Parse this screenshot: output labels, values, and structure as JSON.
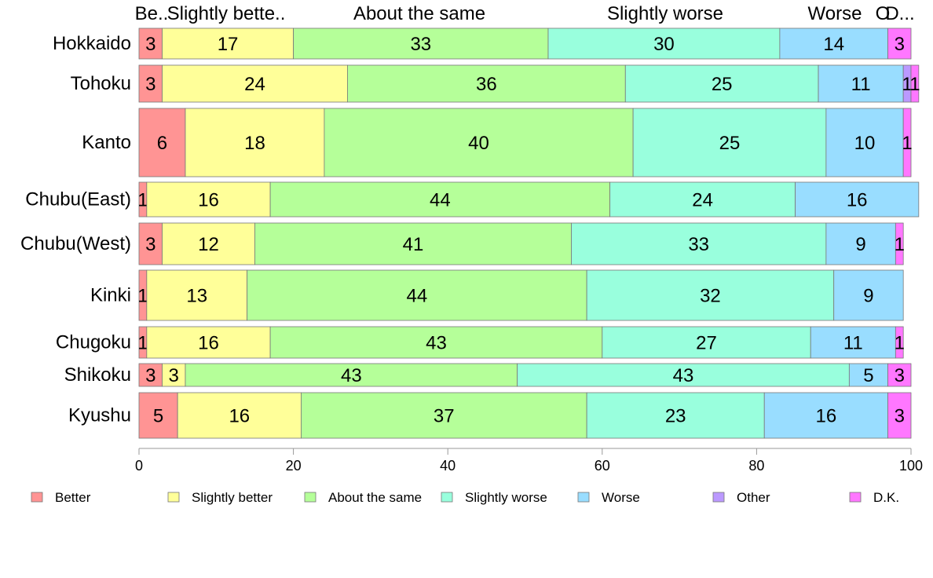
{
  "chart_data": {
    "type": "bar",
    "orientation": "horizontal",
    "stacked": true,
    "percent": true,
    "categories": [
      "Hokkaido",
      "Tohoku",
      "Kanto",
      "Chubu(East)",
      "Chubu(West)",
      "Kinki",
      "Chugoku",
      "Shikoku",
      "Kyushu"
    ],
    "series": [
      {
        "name": "Better",
        "color": "#ff9494",
        "values": [
          3,
          3,
          6,
          1,
          3,
          1,
          1,
          3,
          5
        ]
      },
      {
        "name": "Slightly better",
        "color": "#ffff99",
        "values": [
          17,
          24,
          18,
          16,
          12,
          13,
          16,
          3,
          16
        ]
      },
      {
        "name": "About the same",
        "color": "#b5ff99",
        "values": [
          33,
          36,
          40,
          44,
          41,
          44,
          43,
          43,
          37
        ]
      },
      {
        "name": "Slightly worse",
        "color": "#99ffdd",
        "values": [
          30,
          25,
          25,
          24,
          33,
          32,
          27,
          43,
          23
        ]
      },
      {
        "name": "Worse",
        "color": "#99ddff",
        "values": [
          14,
          11,
          10,
          16,
          9,
          9,
          11,
          5,
          16
        ]
      },
      {
        "name": "Other",
        "color": "#bb99ff",
        "values": [
          0,
          1,
          0,
          0,
          0,
          0,
          0,
          0,
          0
        ]
      },
      {
        "name": "D.K.",
        "color": "#ff77ff",
        "values": [
          3,
          1,
          1,
          0,
          1,
          0,
          1,
          3,
          3
        ]
      }
    ],
    "top_labels": [
      "Be..",
      "Slightly bette..",
      "About the same",
      "Slightly worse",
      "Worse",
      "O",
      "D..."
    ],
    "value_labels": [
      [
        "3",
        "17",
        "33",
        "30",
        "14",
        "",
        "3"
      ],
      [
        "3",
        "24",
        "36",
        "25",
        "11",
        "1",
        "1"
      ],
      [
        "6",
        "18",
        "40",
        "25",
        "10",
        "",
        "1"
      ],
      [
        "1",
        "16",
        "44",
        "24",
        "16",
        "",
        ""
      ],
      [
        "3",
        "12",
        "41",
        "33",
        "9",
        "",
        "1"
      ],
      [
        "1",
        "13",
        "44",
        "32",
        "9",
        "",
        ""
      ],
      [
        "1",
        "16",
        "43",
        "27",
        "11",
        "",
        "1"
      ],
      [
        "3",
        "3",
        "43",
        "43",
        "5",
        "",
        "3"
      ],
      [
        "5",
        "16",
        "37",
        "23",
        "16",
        "",
        "3"
      ]
    ],
    "xlim": [
      0,
      100
    ],
    "xticks": [
      0,
      20,
      40,
      60,
      80,
      100
    ],
    "legend_position": "bottom",
    "grid": false
  }
}
